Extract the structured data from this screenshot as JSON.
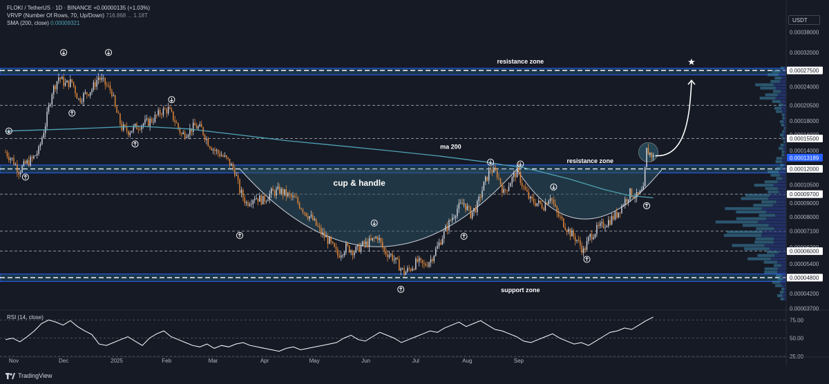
{
  "header": {
    "symbol_line": "FLOKI / TetherUS · 1D · BINANCE",
    "change": "+0.00000135 (+1.03%)",
    "vrvp_label": "VRVP (Number Of Rows, 70, Up/Down)",
    "vrvp_values": [
      "716.868",
      "...",
      "1.18T"
    ],
    "sma_label": "SMA (200, close)",
    "sma_value": "0.00009321",
    "rsi_label": "RSI (14, close)"
  },
  "currency": "USDT",
  "brand": "TradingView",
  "colors": {
    "background": "#161a25",
    "up": "#d1d4dc",
    "down": "#e0883a",
    "sma": "#4fa3b5",
    "zone": "#1f4e6a",
    "price_tag": "#2962ff"
  },
  "chart_data": {
    "type": "candlestick",
    "symbol": "FLOKI / TetherUS",
    "timeframe": "1D",
    "y_scale": "log",
    "ylim": [
      3.7e-05,
      0.00038
    ],
    "y_ticks": [
      "0.00038000",
      "0.00032000",
      "0.00027500",
      "0.00024000",
      "0.00020500",
      "0.00018000",
      "0.00016000",
      "0.00015500",
      "0.00014000",
      "0.00013189",
      "0.00012000",
      "0.00010500",
      "0.00009700",
      "0.00009000",
      "0.00008000",
      "0.00007100",
      "0.00006200",
      "0.00006000",
      "0.00005400",
      "0.00004800",
      "0.00004200",
      "0.00003700"
    ],
    "highlighted_ticks": [
      "0.00027500",
      "0.00015500",
      "0.00013189",
      "0.00012000",
      "0.00009700",
      "0.00006000",
      "0.00004800"
    ],
    "current_price": "0.00013189",
    "x_ticks": [
      "Nov",
      "Dec",
      "2025",
      "Feb",
      "Mar",
      "Apr",
      "May",
      "Jun",
      "Jul",
      "Aug",
      "Sep"
    ],
    "horizontal_levels": [
      0.000275,
      0.000205,
      0.000155,
      0.00012,
      9.7e-05,
      7.1e-05,
      6e-05,
      4.8e-05
    ],
    "zones": [
      {
        "label": "resistance zone",
        "from": 0.000265,
        "to": 0.00028
      },
      {
        "label": "resistance zone",
        "from": 0.000116,
        "to": 0.000124
      },
      {
        "label": "support zone",
        "from": 4.65e-05,
        "to": 4.95e-05
      }
    ],
    "annotations": [
      "resistance zone",
      "ma 200",
      "resistance zone",
      "cup & handle",
      "support zone"
    ],
    "pattern": "cup & handle",
    "price_path": [
      [
        0,
        0.000138
      ],
      [
        4,
        0.00013
      ],
      [
        8,
        0.000118
      ],
      [
        12,
        0.000125
      ],
      [
        16,
        0.00013
      ],
      [
        20,
        0.00014
      ],
      [
        24,
        0.000175
      ],
      [
        28,
        0.00023
      ],
      [
        32,
        0.00026
      ],
      [
        36,
        0.000245
      ],
      [
        40,
        0.00025
      ],
      [
        44,
        0.000215
      ],
      [
        48,
        0.000225
      ],
      [
        52,
        0.000235
      ],
      [
        56,
        0.00026
      ],
      [
        60,
        0.000245
      ],
      [
        64,
        0.00023
      ],
      [
        66,
        0.0002
      ],
      [
        70,
        0.00017
      ],
      [
        74,
        0.000165
      ],
      [
        78,
        0.00017
      ],
      [
        82,
        0.000175
      ],
      [
        86,
        0.000178
      ],
      [
        90,
        0.000185
      ],
      [
        94,
        0.000195
      ],
      [
        98,
        0.000198
      ],
      [
        102,
        0.00018
      ],
      [
        106,
        0.00016
      ],
      [
        110,
        0.000165
      ],
      [
        114,
        0.000172
      ],
      [
        118,
        0.000168
      ],
      [
        122,
        0.00015
      ],
      [
        126,
        0.00014
      ],
      [
        130,
        0.000135
      ],
      [
        134,
        0.000128
      ],
      [
        138,
        0.000118
      ],
      [
        141,
        0.0001
      ],
      [
        145,
        9e-05
      ],
      [
        150,
        9.5e-05
      ],
      [
        155,
        9.2e-05
      ],
      [
        160,
        9.8e-05
      ],
      [
        165,
        0.0001
      ],
      [
        170,
        9.6e-05
      ],
      [
        175,
        9.2e-05
      ],
      [
        180,
        8.4e-05
      ],
      [
        185,
        7.8e-05
      ],
      [
        190,
        7e-05
      ],
      [
        195,
        6.5e-05
      ],
      [
        200,
        5.8e-05
      ],
      [
        205,
        6.2e-05
      ],
      [
        210,
        6e-05
      ],
      [
        215,
        6.3e-05
      ],
      [
        220,
        6.5e-05
      ],
      [
        224,
        6.8e-05
      ],
      [
        228,
        6e-05
      ],
      [
        232,
        5.8e-05
      ],
      [
        236,
        5.4e-05
      ],
      [
        240,
        5e-05
      ],
      [
        244,
        5.2e-05
      ],
      [
        248,
        5.5e-05
      ],
      [
        252,
        5.3e-05
      ],
      [
        256,
        5.6e-05
      ],
      [
        260,
        6.2e-05
      ],
      [
        264,
        7e-05
      ],
      [
        268,
        7.8e-05
      ],
      [
        272,
        8.6e-05
      ],
      [
        276,
        9e-05
      ],
      [
        280,
        8.2e-05
      ],
      [
        284,
        8.8e-05
      ],
      [
        288,
        0.000105
      ],
      [
        292,
        0.00012
      ],
      [
        296,
        0.000115
      ],
      [
        300,
        9.8e-05
      ],
      [
        304,
        0.000108
      ],
      [
        308,
        0.000118
      ],
      [
        312,
        0.000102
      ],
      [
        316,
        9.2e-05
      ],
      [
        320,
        9e-05
      ],
      [
        324,
        8.8e-05
      ],
      [
        328,
        9.6e-05
      ],
      [
        332,
        8.2e-05
      ],
      [
        336,
        7.6e-05
      ],
      [
        340,
        7e-05
      ],
      [
        344,
        6.6e-05
      ],
      [
        348,
        6e-05
      ],
      [
        352,
        6.8e-05
      ],
      [
        356,
        7.2e-05
      ],
      [
        360,
        7.5e-05
      ],
      [
        364,
        7.8e-05
      ],
      [
        368,
        8.2e-05
      ],
      [
        372,
        9e-05
      ],
      [
        376,
        9.8e-05
      ],
      [
        380,
        9.5e-05
      ],
      [
        384,
        0.0001
      ],
      [
        386,
        0.00014
      ],
      [
        390,
        0.000133
      ]
    ],
    "sma_path": [
      [
        0,
        0.000165
      ],
      [
        40,
        0.000168
      ],
      [
        80,
        0.000172
      ],
      [
        110,
        0.000168
      ],
      [
        140,
        0.00016
      ],
      [
        170,
        0.000152
      ],
      [
        200,
        0.000146
      ],
      [
        230,
        0.00014
      ],
      [
        260,
        0.000134
      ],
      [
        290,
        0.000127
      ],
      [
        300,
        0.000124
      ],
      [
        310,
        0.000122
      ],
      [
        320,
        0.000118
      ],
      [
        340,
        0.00011
      ],
      [
        360,
        0.000101
      ],
      [
        375,
        9.6e-05
      ],
      [
        390,
        9.4e-05
      ]
    ],
    "rsi": {
      "ylim": [
        25,
        80
      ],
      "y_ticks": [
        "75.00",
        "50.00",
        "25.00"
      ],
      "values": [
        48,
        50,
        45,
        52,
        60,
        70,
        75,
        72,
        68,
        74,
        66,
        60,
        55,
        42,
        40,
        44,
        48,
        52,
        46,
        40,
        50,
        56,
        60,
        52,
        48,
        44,
        40,
        38,
        42,
        36,
        40,
        38,
        42,
        44,
        40,
        38,
        36,
        34,
        32,
        36,
        38,
        34,
        36,
        38,
        40,
        42,
        44,
        50,
        54,
        48,
        46,
        52,
        58,
        54,
        50,
        44,
        48,
        52,
        56,
        60,
        58,
        64,
        68,
        72,
        66,
        70,
        74,
        68,
        62,
        60,
        56,
        52,
        46,
        44,
        48,
        52,
        56,
        50,
        46,
        42,
        44,
        40,
        46,
        52,
        58,
        60,
        64,
        62,
        68,
        74,
        79
      ]
    }
  }
}
